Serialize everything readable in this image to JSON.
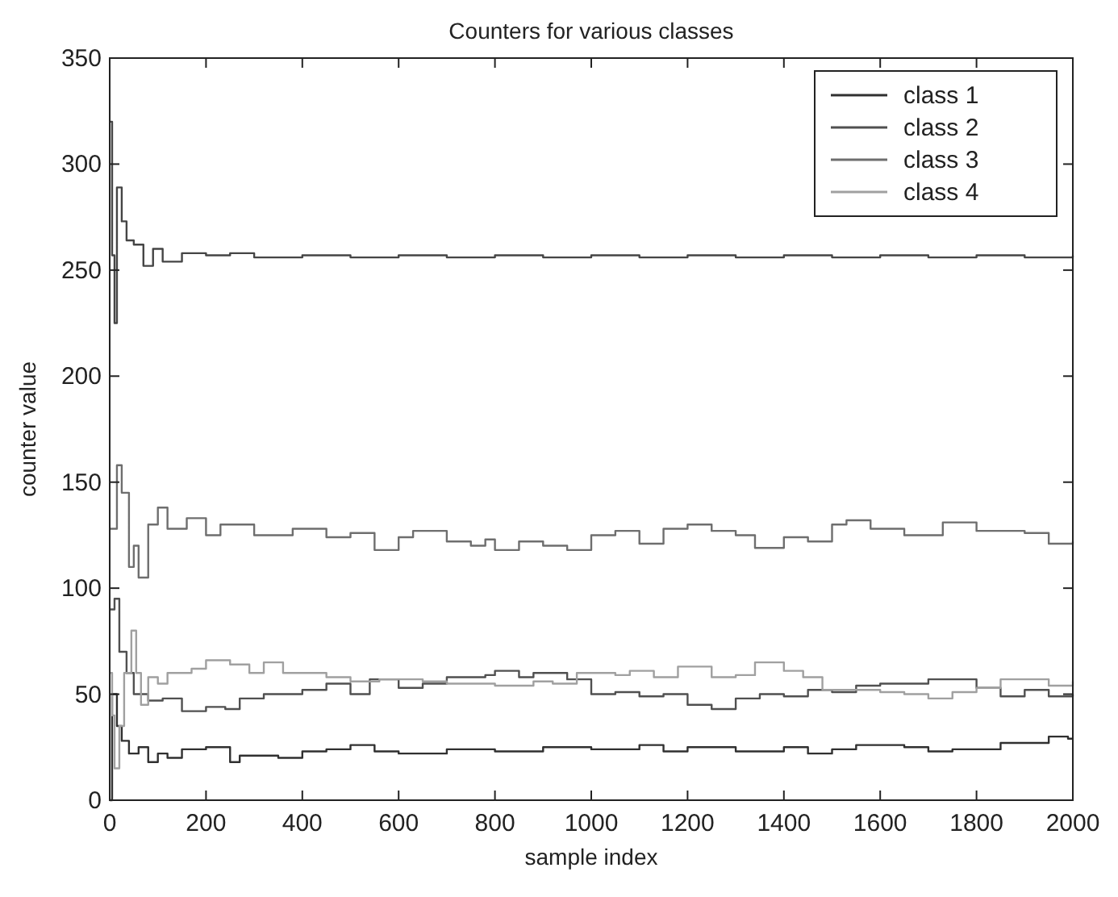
{
  "chart_data": {
    "type": "step",
    "title": "Counters for various classes",
    "xlabel": "sample index",
    "ylabel": "counter value",
    "xlim": [
      0,
      2000
    ],
    "ylim": [
      0,
      350
    ],
    "xticks": [
      0,
      200,
      400,
      600,
      800,
      1000,
      1200,
      1400,
      1600,
      1800,
      2000
    ],
    "yticks": [
      0,
      50,
      100,
      150,
      200,
      250,
      300,
      350
    ],
    "grid": false,
    "legend": "top right",
    "line_style": "solid",
    "series": [
      {
        "name": "class 1",
        "color": "#303030",
        "x": [
          0,
          5,
          15,
          25,
          40,
          60,
          80,
          100,
          120,
          150,
          200,
          250,
          270,
          350,
          400,
          450,
          500,
          550,
          600,
          700,
          800,
          900,
          1000,
          1100,
          1150,
          1200,
          1300,
          1400,
          1450,
          1500,
          1550,
          1650,
          1700,
          1750,
          1850,
          1950,
          1990,
          2000
        ],
        "values": [
          0,
          50,
          35,
          28,
          22,
          25,
          18,
          22,
          20,
          24,
          25,
          18,
          21,
          20,
          23,
          24,
          26,
          23,
          22,
          24,
          23,
          25,
          24,
          26,
          23,
          25,
          23,
          25,
          22,
          24,
          26,
          25,
          23,
          24,
          27,
          30,
          29,
          29
        ]
      },
      {
        "name": "class 2",
        "color": "#505050",
        "x": [
          0,
          10,
          20,
          35,
          50,
          80,
          110,
          150,
          200,
          240,
          270,
          320,
          400,
          450,
          500,
          540,
          600,
          650,
          700,
          780,
          800,
          850,
          880,
          950,
          1000,
          1050,
          1100,
          1150,
          1200,
          1250,
          1300,
          1350,
          1400,
          1450,
          1500,
          1550,
          1600,
          1700,
          1800,
          1850,
          1900,
          1950,
          2000
        ],
        "values": [
          90,
          95,
          70,
          60,
          50,
          47,
          48,
          42,
          44,
          43,
          48,
          50,
          52,
          55,
          50,
          57,
          53,
          55,
          58,
          59,
          61,
          58,
          60,
          57,
          50,
          51,
          49,
          50,
          45,
          43,
          48,
          50,
          49,
          52,
          51,
          54,
          55,
          57,
          53,
          49,
          52,
          49,
          50
        ]
      },
      {
        "name": "class 3",
        "color": "#6e6e6e",
        "x": [
          0,
          15,
          25,
          40,
          50,
          60,
          80,
          100,
          120,
          160,
          200,
          230,
          300,
          380,
          450,
          500,
          550,
          600,
          630,
          700,
          750,
          780,
          800,
          850,
          900,
          950,
          1000,
          1050,
          1100,
          1150,
          1200,
          1250,
          1300,
          1340,
          1400,
          1450,
          1500,
          1530,
          1580,
          1650,
          1700,
          1730,
          1800,
          1900,
          1950,
          2000
        ],
        "values": [
          128,
          158,
          145,
          110,
          120,
          105,
          130,
          138,
          128,
          133,
          125,
          130,
          125,
          128,
          124,
          126,
          118,
          124,
          127,
          122,
          120,
          123,
          118,
          122,
          120,
          118,
          125,
          127,
          121,
          128,
          130,
          127,
          125,
          119,
          124,
          122,
          130,
          132,
          128,
          125,
          125,
          131,
          127,
          126,
          121,
          122
        ]
      },
      {
        "name": "class 4",
        "color": "#a0a0a0",
        "x": [
          0,
          5,
          10,
          20,
          30,
          45,
          55,
          65,
          80,
          100,
          120,
          170,
          200,
          250,
          290,
          320,
          360,
          450,
          500,
          560,
          650,
          700,
          800,
          880,
          920,
          970,
          1050,
          1080,
          1130,
          1180,
          1250,
          1300,
          1340,
          1400,
          1440,
          1480,
          1600,
          1650,
          1700,
          1750,
          1800,
          1850,
          1950,
          2000
        ],
        "values": [
          60,
          40,
          15,
          35,
          60,
          80,
          60,
          45,
          58,
          55,
          60,
          62,
          66,
          64,
          60,
          65,
          60,
          58,
          56,
          57,
          56,
          55,
          54,
          56,
          55,
          60,
          59,
          61,
          58,
          63,
          58,
          59,
          65,
          61,
          58,
          52,
          51,
          50,
          48,
          51,
          53,
          57,
          54,
          56
        ]
      },
      {
        "color": "#454545",
        "x": [
          0,
          5,
          10,
          15,
          25,
          35,
          50,
          70,
          90,
          110,
          150,
          200,
          250,
          300,
          400,
          500,
          600,
          700,
          800,
          900,
          1000,
          1100,
          1200,
          1300,
          1400,
          1500,
          1600,
          1700,
          1800,
          1900,
          2000
        ],
        "values": [
          320,
          257,
          225,
          289,
          273,
          264,
          262,
          252,
          260,
          254,
          258,
          257,
          258,
          256,
          257,
          256,
          257,
          256,
          257,
          256,
          257,
          256,
          257,
          256,
          257,
          256,
          257,
          256,
          257,
          256,
          257
        ]
      }
    ]
  }
}
